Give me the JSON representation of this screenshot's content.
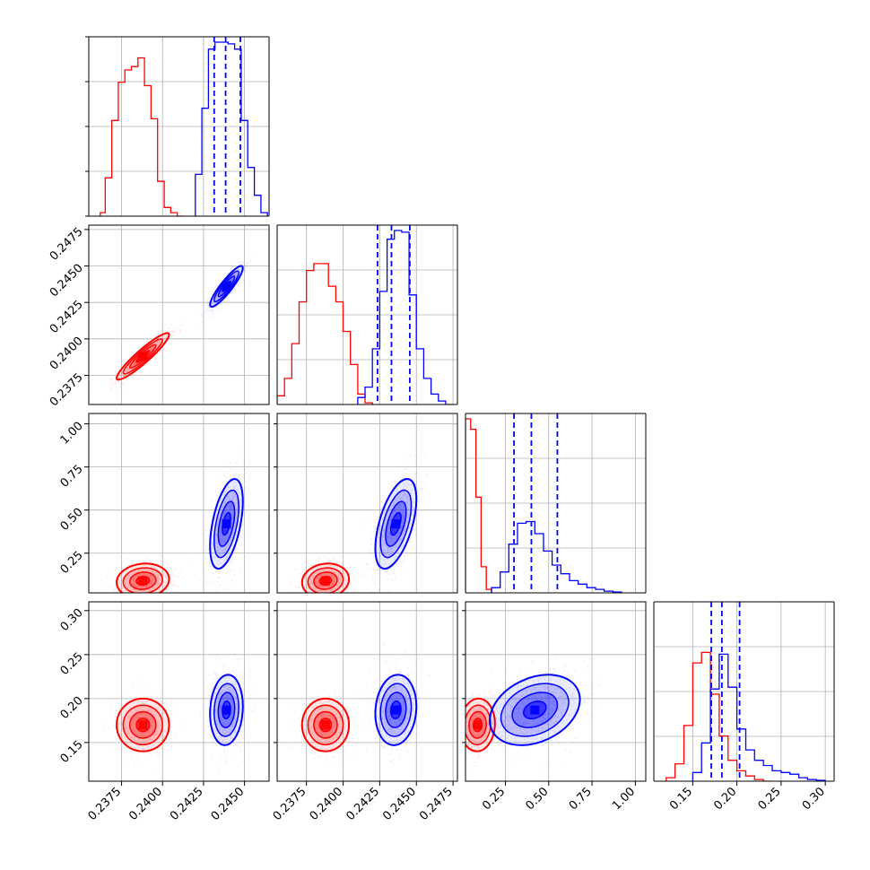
{
  "chart_data": {
    "type": "corner",
    "title": "",
    "grid": true,
    "colors": {
      "red": "#ff0000",
      "blue": "#0000ff"
    },
    "params": [
      {
        "name": "",
        "range": [
          0.2355,
          0.2465
        ],
        "ticks": []
      },
      {
        "name": "",
        "range": [
          0.2355,
          0.2478
        ],
        "ticks": [
          0.2375,
          0.24,
          0.2425,
          0.245,
          0.2475
        ],
        "tick_labels": [
          "0.2375",
          "0.2400",
          "0.2425",
          "0.2450",
          "0.2475"
        ]
      },
      {
        "name": "",
        "range": [
          0.02,
          1.06
        ],
        "ticks": [
          0.25,
          0.5,
          0.75,
          1.0
        ],
        "tick_labels": [
          "0.25",
          "0.50",
          "0.75",
          "1.00"
        ]
      },
      {
        "name": "",
        "range": [
          0.106,
          0.31
        ],
        "ticks": [
          0.15,
          0.2,
          0.25,
          0.3
        ],
        "tick_labels": [
          "0.15",
          "0.20",
          "0.25",
          "0.30"
        ]
      }
    ],
    "bottom_tick_labels": [
      [
        "0.2375",
        "0.2400",
        "0.2425",
        "0.2450"
      ],
      [
        "0.2375",
        "0.2400",
        "0.2425",
        "0.2450",
        "0.2475"
      ],
      [
        "0.25",
        "0.50",
        "0.75",
        "1.00"
      ],
      [
        "0.15",
        "0.20",
        "0.25",
        "0.30"
      ]
    ],
    "bottom_tick_values": [
      [
        0.2375,
        0.24,
        0.2425,
        0.245
      ],
      [
        0.2375,
        0.24,
        0.2425,
        0.245,
        0.2475
      ],
      [
        0.25,
        0.5,
        0.75,
        1.0
      ],
      [
        0.15,
        0.2,
        0.25,
        0.3
      ]
    ],
    "left_tick_labels": [
      [],
      [
        "0.2375",
        "0.2400",
        "0.2425",
        "0.2450",
        "0.2475"
      ],
      [
        "0.25",
        "0.50",
        "0.75",
        "1.00"
      ],
      [
        "0.15",
        "0.20",
        "0.25",
        "0.30"
      ]
    ],
    "left_tick_values": [
      [],
      [
        0.2375,
        0.24,
        0.2425,
        0.245,
        0.2475
      ],
      [
        0.25,
        0.5,
        0.75,
        1.0
      ],
      [
        0.15,
        0.2,
        0.25,
        0.3
      ]
    ],
    "series": [
      {
        "name": "",
        "color": "#ff0000",
        "means": [
          0.2388,
          0.2388,
          0.09,
          0.17
        ],
        "sds": [
          0.0008,
          0.0008,
          0.05,
          0.015
        ],
        "corr": [
          [
            1,
            0.93,
            0.1,
            0.0
          ],
          [
            0.93,
            1,
            0.1,
            0.0
          ],
          [
            0.1,
            0.1,
            1,
            0.05
          ],
          [
            0.0,
            0.0,
            0.05,
            1
          ]
        ],
        "quantiles": null
      },
      {
        "name": "",
        "color": "#0000ff",
        "means": [
          0.2439,
          0.2436,
          0.42,
          0.187
        ],
        "sds": [
          0.0005,
          0.0007,
          0.13,
          0.02
        ],
        "corr": [
          [
            1,
            0.9,
            0.5,
            0.1
          ],
          [
            0.9,
            1,
            0.55,
            0.1
          ],
          [
            0.5,
            0.55,
            1,
            0.3
          ],
          [
            0.1,
            0.1,
            0.3,
            1
          ]
        ],
        "quantiles": [
          [
            0.24315,
            0.24385,
            0.24475
          ],
          [
            0.24235,
            0.2433,
            0.24455
          ],
          [
            0.3,
            0.4,
            0.55
          ],
          [
            0.171,
            0.183,
            0.203
          ]
        ]
      }
    ],
    "diagonal_histograms": [
      {
        "param": 0,
        "red": {
          "edges": [
            0.2362,
            0.2365,
            0.2369,
            0.2373,
            0.2377,
            0.2381,
            0.2385,
            0.2389,
            0.2393,
            0.2397,
            0.2401,
            0.2405,
            0.2409,
            0.2413
          ],
          "counts": [
            0.02,
            0.22,
            0.55,
            0.77,
            0.84,
            0.86,
            0.91,
            0.75,
            0.56,
            0.2,
            0.05,
            0.02,
            0.0
          ]
        },
        "blue": {
          "edges": [
            0.242,
            0.2424,
            0.2428,
            0.2432,
            0.2436,
            0.244,
            0.2444,
            0.2448,
            0.2452,
            0.2456,
            0.246,
            0.2464
          ],
          "counts": [
            0.24,
            0.62,
            0.96,
            1.0,
            1.0,
            0.99,
            0.96,
            0.55,
            0.28,
            0.12,
            0.02
          ]
        }
      },
      {
        "param": 1,
        "red": {
          "edges": [
            0.2355,
            0.236,
            0.2365,
            0.237,
            0.2375,
            0.238,
            0.2385,
            0.239,
            0.2395,
            0.24,
            0.2405,
            0.241,
            0.2415,
            0.242
          ],
          "counts": [
            0.05,
            0.15,
            0.35,
            0.59,
            0.77,
            0.81,
            0.81,
            0.68,
            0.59,
            0.42,
            0.23,
            0.06,
            0.01
          ]
        },
        "blue": {
          "edges": [
            0.241,
            0.2415,
            0.242,
            0.2425,
            0.243,
            0.2435,
            0.244,
            0.2445,
            0.245,
            0.2455,
            0.246,
            0.2465,
            0.247,
            0.2475
          ],
          "counts": [
            0.04,
            0.1,
            0.32,
            0.65,
            0.95,
            1.0,
            0.99,
            0.63,
            0.32,
            0.15,
            0.06,
            0.02,
            0.0
          ]
        }
      },
      {
        "param": 2,
        "red": {
          "edges": [
            0.02,
            0.05,
            0.08,
            0.11,
            0.14,
            0.17
          ],
          "counts": [
            1.0,
            0.94,
            0.55,
            0.15,
            0.02
          ]
        },
        "blue": {
          "edges": [
            0.17,
            0.22,
            0.27,
            0.32,
            0.37,
            0.42,
            0.47,
            0.52,
            0.57,
            0.62,
            0.67,
            0.72,
            0.77,
            0.82,
            0.87,
            0.92
          ],
          "counts": [
            0.03,
            0.12,
            0.28,
            0.4,
            0.41,
            0.34,
            0.24,
            0.16,
            0.11,
            0.07,
            0.05,
            0.03,
            0.02,
            0.01,
            0.005
          ]
        }
      },
      {
        "param": 3,
        "red": {
          "edges": [
            0.12,
            0.13,
            0.14,
            0.15,
            0.16,
            0.17,
            0.18,
            0.19,
            0.2,
            0.21,
            0.22,
            0.23,
            0.24
          ],
          "counts": [
            0.02,
            0.1,
            0.32,
            0.68,
            0.74,
            0.5,
            0.26,
            0.12,
            0.06,
            0.03,
            0.01,
            0.0
          ]
        },
        "blue": {
          "edges": [
            0.15,
            0.16,
            0.17,
            0.18,
            0.19,
            0.2,
            0.21,
            0.22,
            0.23,
            0.24,
            0.25,
            0.26,
            0.27,
            0.28,
            0.29,
            0.3
          ],
          "counts": [
            0.05,
            0.22,
            0.53,
            0.73,
            0.54,
            0.3,
            0.18,
            0.12,
            0.09,
            0.06,
            0.05,
            0.04,
            0.02,
            0.01,
            0.005
          ]
        }
      }
    ]
  }
}
